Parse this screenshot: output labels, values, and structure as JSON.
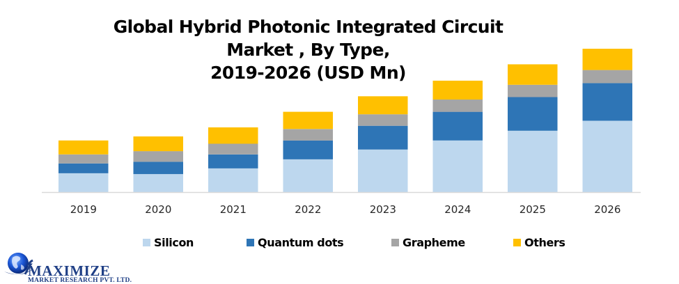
{
  "chart_data": {
    "type": "bar",
    "stacked": true,
    "title": "Global Hybrid Photonic Integrated Circuit Market , By Type, 2019-2026 (USD Mn)",
    "title_lines": [
      "Global Hybrid Photonic Integrated Circuit Market , By Type,",
      "2019-2026 (USD Mn)"
    ],
    "xlabel": "",
    "ylabel": "",
    "y_axis_visible": false,
    "grid": false,
    "legend_position": "bottom",
    "categories": [
      "2019",
      "2020",
      "2021",
      "2022",
      "2023",
      "2024",
      "2025",
      "2026"
    ],
    "series": [
      {
        "name": "Silicon",
        "color": "#BDD7EE",
        "values": [
          23,
          22,
          29,
          40,
          52,
          63,
          75,
          87
        ]
      },
      {
        "name": "Quantum dots",
        "color": "#2E75B6",
        "values": [
          12,
          15,
          17,
          23,
          29,
          35,
          41,
          46
        ]
      },
      {
        "name": "Grapheme",
        "color": "#A5A5A5",
        "values": [
          11,
          13,
          13,
          14,
          14,
          15,
          15,
          16
        ]
      },
      {
        "name": "Others",
        "color": "#FFC000",
        "values": [
          17,
          18,
          20,
          21,
          22,
          23,
          25,
          26
        ]
      }
    ],
    "ylim": [
      0,
      175
    ],
    "note": "Values are relative estimates; the chart shows no numeric value axis."
  },
  "logo": {
    "name": "MAXIMIZE",
    "subtitle": "MARKET RESEARCH PVT. LTD.",
    "icon": "globe-icon"
  }
}
